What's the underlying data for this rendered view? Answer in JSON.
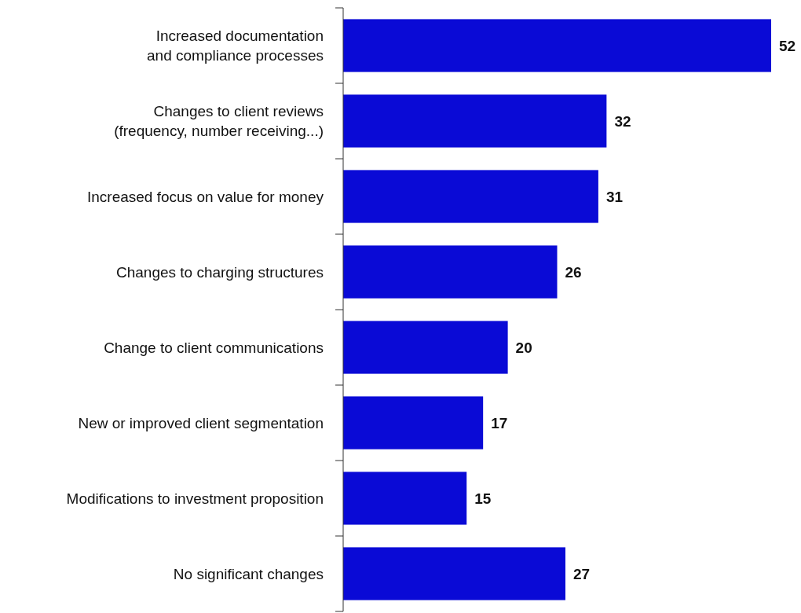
{
  "chart_data": {
    "type": "bar",
    "orientation": "horizontal",
    "categories": [
      "Increased documentation\nand compliance processes",
      "Changes to client reviews\n(frequency, number receiving...)",
      "Increased focus on value for money",
      "Changes to charging structures",
      "Change to client communications",
      "New or improved client segmentation",
      "Modifications to investment proposition",
      "No significant changes"
    ],
    "values": [
      52,
      32,
      31,
      26,
      20,
      17,
      15,
      27
    ],
    "color": "#0a0ad6",
    "data_labels": true,
    "tick_labels": "y"
  }
}
